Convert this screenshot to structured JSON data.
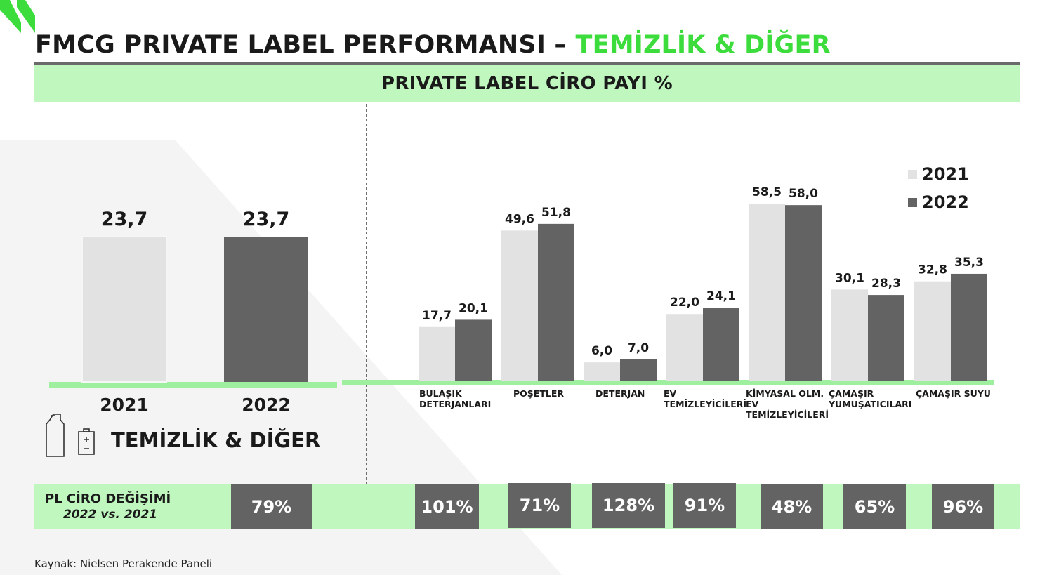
{
  "header": {
    "title_main": "FMCG PRIVATE LABEL PERFORMANSI – ",
    "title_accent": "TEMİZLİK & DİĞER",
    "subtitle": "PRIVATE LABEL CİRO PAYI %"
  },
  "colors": {
    "accent": "#3ddc3d",
    "band": "#bff7bf",
    "bar_2021": "#e2e2e2",
    "bar_2022": "#636363",
    "axis": "#9ef09e"
  },
  "icons": [
    "bottle-icon",
    "battery-icon"
  ],
  "section_label": "TEMİZLİK & DİĞER",
  "chart_data": [
    {
      "type": "bar",
      "categories": [
        "2021",
        "2022"
      ],
      "values": [
        23.7,
        23.7
      ],
      "value_labels": [
        "23,7",
        "23,7"
      ],
      "title": "",
      "xlabel": "",
      "ylabel": "",
      "ylim": [
        0,
        23.7
      ]
    },
    {
      "type": "bar",
      "categories": [
        "BULAŞIK\nDETERJANLARI",
        "POŞETLER",
        "DETERJAN",
        "EV\nTEMİZLEYİCİLERİ",
        "KİMYASAL OLM.\nEV\nTEMİZLEYİCİLERİ",
        "ÇAMAŞIR\nYUMUŞATICILARI",
        "ÇAMAŞIR SUYU"
      ],
      "series": [
        {
          "name": "2021",
          "values": [
            17.7,
            49.6,
            6.0,
            22.0,
            58.5,
            30.1,
            32.8
          ],
          "labels": [
            "17,7",
            "49,6",
            "6,0",
            "22,0",
            "58,5",
            "30,1",
            "32,8"
          ]
        },
        {
          "name": "2022",
          "values": [
            20.1,
            51.8,
            7.0,
            24.1,
            58.0,
            28.3,
            35.3
          ],
          "labels": [
            "20,1",
            "51,8",
            "7,0",
            "24,1",
            "58,0",
            "28,3",
            "35,3"
          ]
        }
      ],
      "legend": "top-right",
      "title": "",
      "xlabel": "",
      "ylabel": "",
      "ylim": [
        0,
        58.5
      ]
    }
  ],
  "change_row": {
    "label_line1": "PL CİRO DEĞİŞİMİ",
    "label_line2": "2022 vs. 2021",
    "values": [
      "79%",
      "101%",
      "71%",
      "128%",
      "91%",
      "48%",
      "65%",
      "96%"
    ]
  },
  "footer": {
    "source": "Kaynak: Nielsen Perakende Paneli"
  }
}
